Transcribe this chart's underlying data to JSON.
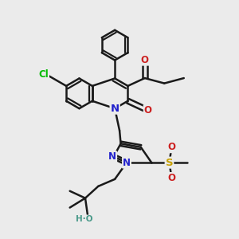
{
  "background_color": "#ebebeb",
  "bond_color": "#1a1a1a",
  "bond_width": 1.8,
  "atom_colors": {
    "N": "#2020cc",
    "O": "#cc2020",
    "Cl": "#00bb00",
    "S": "#c8a000",
    "HO": "#4a9a8a",
    "C": "#1a1a1a"
  },
  "figsize": [
    3.0,
    3.0
  ],
  "dpi": 100
}
